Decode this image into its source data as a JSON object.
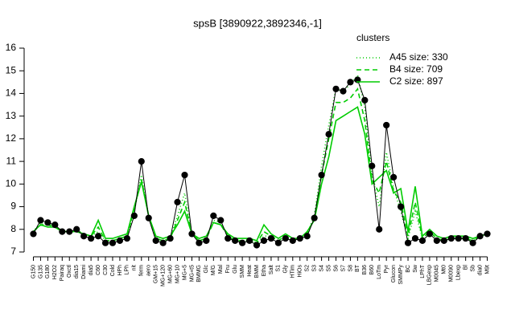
{
  "chart_data": {
    "type": "line",
    "title": "spsB [3890922,3892346,-1]",
    "legend_title": "clusters",
    "legend": "top-right",
    "categories": [
      "G150",
      "G135",
      "G180",
      "H2O2",
      "Pairaq",
      "Oxctl",
      "dia15",
      "Diami",
      "dia5",
      "C60",
      "C30",
      "Cold",
      "HPh",
      "LPh",
      "nit",
      "ferm",
      "aero",
      "GM+15",
      "MG+120",
      "MG+60",
      "MG+10",
      "MG+5",
      "MG+t5",
      "BMMG",
      "Glc",
      "M/G",
      "Mal",
      "Fru",
      "Glu",
      "SMM",
      "Heat",
      "BMM",
      "Etha",
      "Salt",
      "S1",
      "Gly",
      "HTim",
      "HiOs",
      "S2",
      "S3",
      "S4",
      "S5",
      "S6",
      "S7",
      "S8",
      "BT",
      "B36",
      "B60",
      "LoTm",
      "Pyr",
      "Glucon",
      "SMMPy",
      "BC",
      "Sw",
      "LPhT",
      "LBGexp",
      "M0045",
      "Mt0",
      "M0090",
      "Lbexp",
      "Bl",
      "Sb",
      "dia0",
      "M9t"
    ],
    "series": [
      {
        "name": "A45 size: 330",
        "color": "#00cc00",
        "linestyle": "dotted",
        "values": [
          7.9,
          8.3,
          8.2,
          8.2,
          7.9,
          7.9,
          8.0,
          7.8,
          7.7,
          7.9,
          7.5,
          7.5,
          7.6,
          7.7,
          8.8,
          10.4,
          8.6,
          7.6,
          7.5,
          7.6,
          8.6,
          9.6,
          7.8,
          7.5,
          7.6,
          8.4,
          8.3,
          7.7,
          7.5,
          7.5,
          7.5,
          7.4,
          7.7,
          7.7,
          7.5,
          7.7,
          7.5,
          7.6,
          7.8,
          8.6,
          10.8,
          12.6,
          14.2,
          14.1,
          14.4,
          14.8,
          13.4,
          10.4,
          9.0,
          11.4,
          9.8,
          8.8,
          7.6,
          8.8,
          7.6,
          7.9,
          7.6,
          7.5,
          7.6,
          7.6,
          7.6,
          7.5,
          7.7,
          7.8
        ]
      },
      {
        "name": "B4 size: 709",
        "color": "#00cc00",
        "linestyle": "dashed",
        "values": [
          7.9,
          8.2,
          8.2,
          8.1,
          7.9,
          7.9,
          7.9,
          7.8,
          7.7,
          8.1,
          7.5,
          7.5,
          7.6,
          7.7,
          8.9,
          10.2,
          8.6,
          7.6,
          7.5,
          7.6,
          8.4,
          9.2,
          7.8,
          7.5,
          7.6,
          8.3,
          8.2,
          7.7,
          7.5,
          7.5,
          7.5,
          7.4,
          7.9,
          7.7,
          7.5,
          7.7,
          7.5,
          7.6,
          7.8,
          8.5,
          10.4,
          12.0,
          13.6,
          13.6,
          13.8,
          14.2,
          12.8,
          10.2,
          9.6,
          11.0,
          9.7,
          9.2,
          7.7,
          9.2,
          7.6,
          7.9,
          7.6,
          7.5,
          7.6,
          7.6,
          7.6,
          7.5,
          7.7,
          7.8
        ]
      },
      {
        "name": "C2 size: 897",
        "color": "#00cc00",
        "linestyle": "solid",
        "values": [
          7.9,
          8.2,
          8.1,
          8.1,
          7.9,
          7.9,
          7.9,
          7.8,
          7.7,
          8.4,
          7.6,
          7.6,
          7.7,
          7.8,
          9.0,
          10.1,
          8.6,
          7.7,
          7.6,
          7.7,
          8.2,
          8.8,
          7.8,
          7.6,
          7.7,
          8.3,
          8.2,
          7.8,
          7.6,
          7.6,
          7.6,
          7.5,
          8.2,
          7.8,
          7.6,
          7.8,
          7.6,
          7.6,
          7.9,
          8.4,
          10.0,
          11.2,
          12.8,
          13.0,
          13.2,
          13.4,
          12.2,
          10.0,
          10.3,
          10.6,
          9.6,
          9.8,
          7.9,
          9.9,
          7.7,
          8.0,
          7.7,
          7.6,
          7.7,
          7.7,
          7.7,
          7.6,
          7.7,
          7.8
        ]
      },
      {
        "color": "#000000",
        "linestyle": "solid",
        "markers": true,
        "values": [
          7.8,
          8.4,
          8.3,
          8.2,
          7.9,
          7.9,
          8.0,
          7.7,
          7.6,
          7.7,
          7.4,
          7.4,
          7.5,
          7.6,
          8.6,
          11.0,
          8.5,
          7.5,
          7.4,
          7.6,
          9.2,
          10.4,
          7.8,
          7.4,
          7.5,
          8.6,
          8.4,
          7.6,
          7.5,
          7.4,
          7.5,
          7.3,
          7.5,
          7.6,
          7.4,
          7.6,
          7.5,
          7.6,
          7.7,
          8.5,
          10.4,
          12.2,
          14.2,
          14.1,
          14.5,
          14.6,
          13.7,
          10.8,
          8.0,
          12.6,
          10.3,
          9.0,
          7.4,
          7.6,
          7.5,
          7.8,
          7.5,
          7.5,
          7.6,
          7.6,
          7.6,
          7.4,
          7.7,
          7.8
        ]
      }
    ],
    "ylim": [
      7,
      16
    ],
    "yticks": [
      7,
      8,
      9,
      10,
      11,
      12,
      13,
      14,
      15,
      16
    ]
  }
}
